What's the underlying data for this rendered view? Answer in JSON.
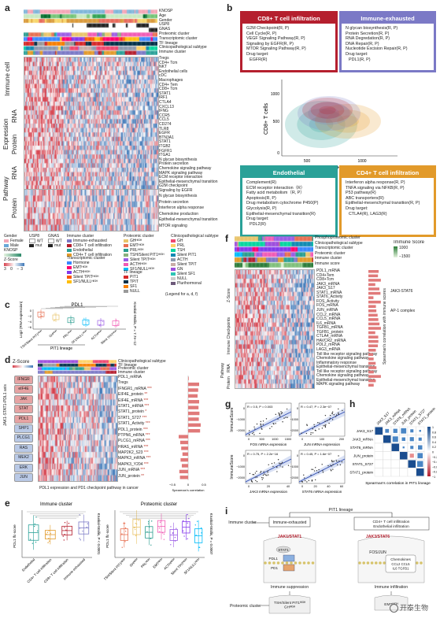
{
  "panel_letters": {
    "a": "a",
    "b": "b",
    "c": "c",
    "d": "d",
    "e": "e",
    "f": "f",
    "g": "g",
    "h": "h",
    "i": "i"
  },
  "panel_a": {
    "top_labels": [
      "KNOSP",
      "Age",
      "Gender",
      "USP8",
      "GNAS",
      "Proteomic cluster",
      "Transcriptomic cluster",
      "TF lineage",
      "Clinicopathological subtype",
      "Immune cluster"
    ],
    "sig_marks": [
      "***",
      "***",
      "***",
      "***"
    ],
    "immune_rows": [
      "Tregs",
      "CD4+ Tcm",
      "NKT",
      "Endothelial cells",
      "cDC",
      "Macrophages",
      "CD4+ Tem",
      "CD8+ Tcm"
    ],
    "rna_rows": [
      "STAT1",
      "IRF1",
      "CTLA4",
      "CXCL13",
      "IFNG",
      "CCR5",
      "CCL5",
      "CD274",
      "TLR8",
      "EGFR"
    ],
    "protein_rows": [
      "BTN3A1",
      "STAT1",
      "ITGB2",
      "FGFR1",
      "ITGA1"
    ],
    "pathway_rna_rows": [
      "N glycan biosynthesis",
      "Protein secretion",
      "Chemokine signaling pathway",
      "MAPK signaling pathway",
      "ECM receptor interaction",
      "Epithelial-mesenchymal transition",
      "G2M checkpoint"
    ],
    "pathway_protein_rows": [
      "Signaling by EGFR",
      "N glycan biosynthesis",
      "Protein secretion",
      "Interferon alpha response",
      "Chemokine production",
      "Epithelial-mesenchymal transition",
      "MTOR signaling"
    ],
    "group_labels": [
      "Immune cell",
      "RNA",
      "Expression",
      "Protein",
      "Pathway",
      "RNA",
      "Protein"
    ],
    "legend": {
      "gender_title": "Gender",
      "gender_items": [
        "Female",
        "Male"
      ],
      "usp8_title": "USP8",
      "usp8_items": [
        "WT",
        "mut"
      ],
      "gnas_title": "GNAS",
      "gnas_items": [
        "WT",
        "mut"
      ],
      "knosp_title": "KNOSP",
      "knosp_items": [
        "0",
        "1",
        "2",
        "3",
        "4"
      ],
      "zscore_title": "Z-Score",
      "zscore_ticks": [
        "3",
        "0",
        "−3"
      ],
      "immune_title": "Immune cluster",
      "immune_items": [
        "Immune-exhausted",
        "CD8+ T cell infiltration",
        "Endothelial",
        "CD4+ T cell infiltration"
      ],
      "trans_title": "Transcriptomic cluster",
      "trans_items": [
        "Hormone",
        "EMTᴴᴵᴳᴴ",
        "ACTHᴴᴵᴳᴴ",
        "Silent TPITᴴᴵᴳᴴ",
        "SF1/NULLᴴᴵᴳᴴ"
      ],
      "prot_title": "Proteomic cluster",
      "prot_items": [
        "GHᴴᴵᴳᴴ",
        "EMTᴴᴵᴳᴴ",
        "PRLᴴᴵᴳᴴ",
        "TSH/Silent PIT1ᴴᴵᴳᴴ",
        "Silent TPITᴴᴵᴳᴴ",
        "ACTHᴴᴵᴳᴴ",
        "SF1/NULLᴴᴵᴳᴴ"
      ],
      "tf_title": "TF lineage",
      "tf_items": [
        "PIT1",
        "TPIT",
        "SF1",
        "NULL"
      ],
      "clin_title": "Clinicopathological subtype",
      "clin_items": [
        "GH",
        "PRL",
        "TSH",
        "Silent PIT1",
        "ACTH",
        "Silent TPIT",
        "GN",
        "Silent SF1",
        "NULL",
        "Plurihormonal"
      ],
      "note": "(Legend for a, d, f)"
    }
  },
  "panel_b": {
    "cd8": {
      "title": "CD8+ T cell infiltration",
      "items": [
        "G2M Checkpoint(R, P)",
        "Cell Cycle(R, P)",
        "VEGF Signaling Pathway(R, P)",
        "Signaling by EGFR(R, P)",
        "MTOR Signaling Pathway(R, P)"
      ],
      "drug_label": "Drug target:",
      "drug": "EGFR(R)"
    },
    "exhausted": {
      "title": "Immune-exhausted",
      "items": [
        "N glycan biosynthesis(R, P)",
        "Protein Secretion(R, P)",
        "RNA Degredation(R, P)",
        "DNA Repair(R, P)",
        "Nucleotide Excision Repair(R, P)"
      ],
      "drug_label": "Drug target:",
      "drug": "PDL1(R, P)"
    },
    "endothelial": {
      "title": "Endothelial",
      "items": [
        "Complement(R)",
        "ECM receptor interaction（R）",
        "Fatty acid metabolism（R, P）",
        "Apoptosis(R, P)",
        "Drug metabolism cytochrome P450(P)",
        "Glycolysis(R, P)",
        "Epithelial-mesenchymal transition(R)"
      ],
      "drug_label": "Drug target:",
      "drug": "PDL2(R)"
    },
    "cd4": {
      "title": "CD4+ T cell infiltration",
      "items": [
        "Interferon alpha response(R, P)",
        "TNFA signaling via NFKB(R, P)",
        "P53 pathway(R)",
        "ABC transporters(R)",
        "Epithelial-mesenchymal transition(R, P)"
      ],
      "drug_label": "Drug target:",
      "drug": "CTLA4(R), LAG3(R)"
    },
    "density": {
      "xlabel": "CD4+ Tem",
      "ylabel": "CD8+ T cells",
      "xticks": [
        "500",
        "1000"
      ],
      "yticks": [
        "1000",
        "500",
        "0"
      ]
    }
  },
  "panel_c": {
    "title": "PDL1",
    "ylabel": "Log2 (RNA expression)",
    "yticks": [
      "0",
      "−2",
      "−4",
      "−6"
    ],
    "categories": [
      "TSH/Silent PIT1ᴴᴵᴳᴴ",
      "GHᴴᴵᴳᴴ",
      "PRLᴴᴵᴳᴴ",
      "SF1/NULLᴴᴵᴳᴴ",
      "ACTHᴴᴵᴳᴴ",
      "Silent TPITᴴᴵᴳᴴ"
    ],
    "lineage_label": "PIT1 lineage",
    "stat": "Kruskal-Wallis, P = 7.7e−12"
  },
  "panel_d": {
    "zscore_title": "Z-Score",
    "top_labels": [
      "Clinicopathological subtype",
      "TF lineage",
      "Proteomic cluster",
      "Immune cluster"
    ],
    "rows": [
      "PDL1_mRNA",
      "Tregs",
      "IFNGR1_mRNA",
      "EIF4E_protein",
      "EIF4E_mRNA",
      "STAT1_mRNA",
      "STAT1_protein",
      "STAT1_S727",
      "STAT1_Activity",
      "PDL1_protein",
      "PTPN6_mRNA",
      "PLCG1_mRNA",
      "HRAS_mRNA",
      "MAP2K2_S23",
      "MAPK3_mRNA",
      "MAPK3_Y204",
      "JUN_mRNA",
      "JUN_protein"
    ],
    "sig": [
      "***",
      "***",
      "**",
      "***",
      "***",
      "*",
      "***",
      "***",
      "***",
      "***",
      "***",
      "***",
      "***",
      "***",
      "***",
      "**"
    ],
    "nodes": [
      "IFNGR",
      "eIF4E",
      "JAK",
      "STAT",
      "PDL1",
      "SHP1",
      "PLCG1",
      "RAS",
      "MEK2",
      "ERK",
      "JUN"
    ],
    "side_label": "JAK1-STAT1-PDL1 axis",
    "caption": "PDL1 expression and PD1 checkpoint pathway in cancer",
    "corr_label": "Spearman's correlation",
    "corr_ticks": [
      "−0.5",
      "0",
      "0.5"
    ],
    "corr_values": [
      0.02,
      0.35,
      0.32,
      0.3,
      0.35,
      0.33,
      0.36,
      0.34,
      0.4,
      0.38,
      -0.3,
      -0.25,
      -0.22,
      -0.18,
      -0.24,
      -0.2,
      -0.28,
      -0.26
    ]
  },
  "panel_e": {
    "immune": {
      "title": "Immune cluster",
      "ylabel": "PDL1 lfc-score",
      "stat": "Kruskal-Wallis, P < 0.0001",
      "categories": [
        "Endothelial",
        "CD4+ T cell infiltration",
        "CD8+ T cell infiltration",
        "Immune-exhausted"
      ]
    },
    "proteomic": {
      "title": "Proteomic cluster",
      "ylabel": "PDL1 lfc-score",
      "stat": "Kruskal-Wallis, P = 0.0007",
      "categories": [
        "TSH/Silent PIT1ᴴᴵᴳᴴ",
        "GHᴴᴵᴳᴴ",
        "PRLᴴᴵᴳᴴ",
        "EMTᴴᴵᴳᴴ",
        "ACTHᴴᴵᴳᴴ",
        "Silent TPITᴴᴵᴳᴴ",
        "SF1/NULLᴴᴵᴳᴴ"
      ]
    }
  },
  "panel_f": {
    "top_labels": [
      "Phosphoproteomic cluster",
      "Clinicopathological subtype",
      "Transcriptomic cluster",
      "Proteomic cluster",
      "Immune cluster",
      "Immune score"
    ],
    "immune_score_title": "Immune Score",
    "immune_score_ticks": [
      "1000",
      "−1500"
    ],
    "rows": [
      "PDL1_mRNA",
      "CD4+Tem",
      "CD8+Tcm",
      "JAK3_mRNA",
      "JAK3_S17",
      "STAT1_mRNA",
      "STAT6_Activity",
      "FOS_Activity",
      "FOS_mRNA",
      "JUN_mRNA",
      "CCL2_mRNA",
      "CCL5_mRNA",
      "IL6_mRNA",
      "TGFB1_mRNA",
      "TGFB1_protein",
      "CTLA4_mRNA",
      "HAVCR2_mRNA",
      "PDL2_mRNA",
      "LAG3_mRNA",
      "Toll like receptor signaling pathway",
      "Chemokine signaling pathway",
      "Inflammatory response",
      "Epithelial-mesenchymal transition",
      "Toll like receptor signaling pathway",
      "Chemokine signaling pathway",
      "Epithelial-mesenchymal transition",
      "MAPK signaling pathway"
    ],
    "group_labels": [
      "Immune Checkpoints",
      "RNA",
      "Protein",
      "Pathway"
    ],
    "zscore_title": "Z-Score",
    "right_labels": [
      "JAK3-STAT6",
      "AP-1 complex"
    ],
    "corr_label": "Spearman's correlation with immune scores"
  },
  "panel_g": {
    "ylabel": "ImmuneScore",
    "plots": [
      {
        "xlabel": "FOS mRNA expression",
        "stat": "R = 0.5, P = 0.003",
        "xticks": [
          "0",
          "500",
          "1000",
          "1500"
        ]
      },
      {
        "xlabel": "JUN mRNA expression",
        "stat": "R = 0.47, P = 2.3e−07",
        "xticks": [
          "0",
          "100",
          "200"
        ]
      },
      {
        "xlabel": "JAK3 mRNA expression",
        "stat": "R = 0.75, P < 2.2e−16",
        "xticks": [
          "0",
          "20",
          "40"
        ]
      },
      {
        "xlabel": "STAT6 mRNA expression",
        "stat": "R = 0.45, P = 1.6e−07",
        "xticks": [
          "0",
          "20",
          "40",
          "60"
        ]
      }
    ],
    "yticks": [
      "0",
      "−1000",
      "−2000"
    ]
  },
  "panel_h": {
    "labels": [
      "JAK3_S17",
      "JAK3_mRNA",
      "STAT6_mRNA",
      "JUN_protein",
      "STAT1_S727",
      "STAT1_protein"
    ],
    "caption": "Spearman's correlation in PIT1 lineage",
    "scale_ticks": [
      "1",
      "0.8",
      "0.6",
      "0.4",
      "0.2",
      "0",
      "−0.2",
      "−0.4",
      "−0.6",
      "−0.8",
      "−1"
    ]
  },
  "panel_i": {
    "lineage": "PIT1 lineage",
    "immune_cluster_label": "Immune cluster",
    "exhausted": "Immune-exhausted",
    "infiltration": "CD4+ T cell infiltration\nEndothelial infiltration",
    "jak_stat1": "JAK1/STAT1",
    "jak_stat6": "JAK3/STAT6",
    "fos_jun": "FOS/JUN",
    "pdl1": "PDL1",
    "pd1": "PD1",
    "stat1": "STAT1",
    "chemokines_title": "Chemokines",
    "chemokines": "CCL2  CCL5\nIL6  TGFB1",
    "immune_suppression": "Immune suppression",
    "immune_infiltration": "Immune infiltration",
    "proteomic_cluster_label": "Proteomic cluster",
    "left_clusters": "TSH/Silent PIT1ᴴᴵᴳᴴ\nGHᴴᴵᴳᴴ",
    "right_cluster": "EMTᴴᴵᴳᴴ"
  },
  "watermark": "开泰生物",
  "colors": {
    "red": "#b51f2e",
    "purple": "#7b79c6",
    "teal": "#2aa198",
    "orange": "#e29a2a",
    "heat_red": "#d6424e",
    "heat_blue": "#3f78b8"
  }
}
